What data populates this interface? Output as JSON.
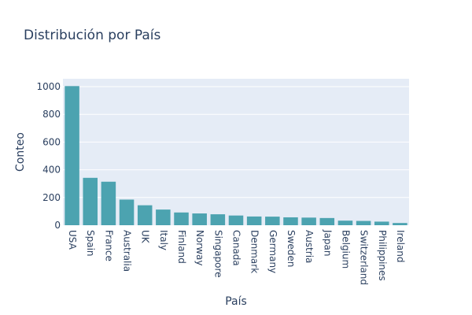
{
  "chart_data": {
    "type": "bar",
    "title": "Distribución por País",
    "xlabel": "País",
    "ylabel": "Conteo",
    "categories": [
      "USA",
      "Spain",
      "France",
      "Australia",
      "UK",
      "Italy",
      "Finland",
      "Norway",
      "Singapore",
      "Canada",
      "Denmark",
      "Germany",
      "Sweden",
      "Austria",
      "Japan",
      "Belgium",
      "Switzerland",
      "Philippines",
      "Ireland"
    ],
    "values": [
      1004,
      342,
      314,
      185,
      144,
      113,
      92,
      85,
      79,
      70,
      63,
      62,
      57,
      55,
      52,
      33,
      31,
      26,
      16
    ],
    "ylim": [
      0,
      1057
    ],
    "yticks": [
      0,
      200,
      400,
      600,
      800,
      1000
    ],
    "grid": true,
    "colors": {
      "bar": "#4ca3b0",
      "plot_background": "#e5ecf6",
      "grid": "#ffffff",
      "text": "#2a3f5f"
    }
  }
}
